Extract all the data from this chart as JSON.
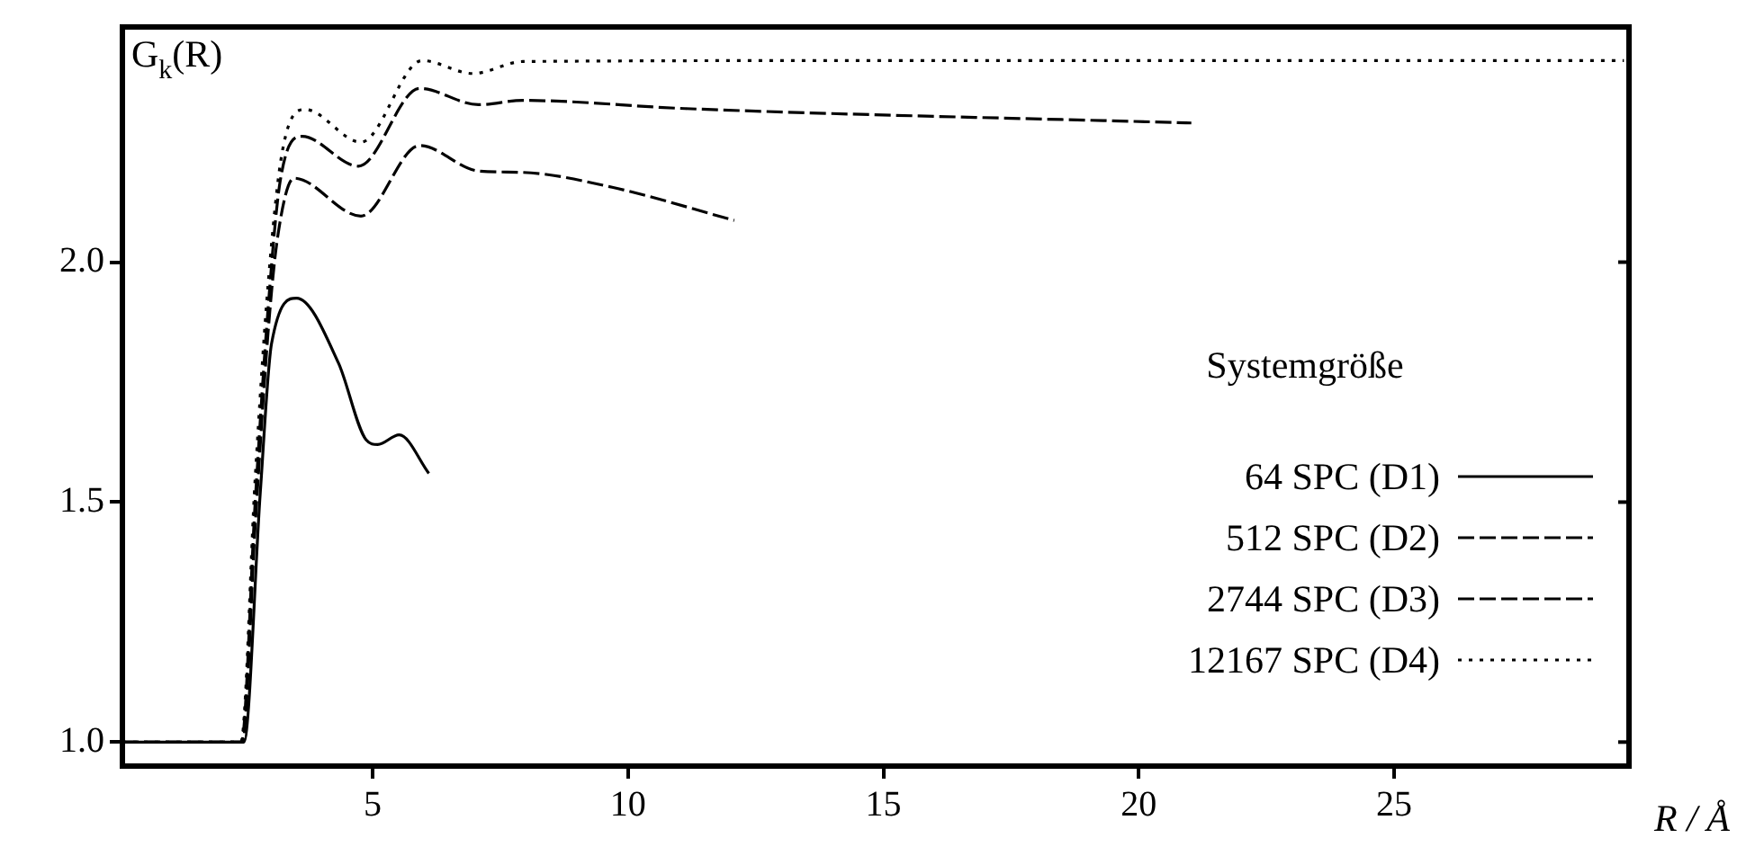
{
  "chart_data": {
    "type": "line",
    "ylabel": "G$_{k}$(R)",
    "xlabel": "R / Å",
    "legend_title": "Systemgröße",
    "legend": "right",
    "marker": "none",
    "xlim": [
      0.1,
      29.6
    ],
    "xticks": [
      5,
      10,
      15,
      20,
      25
    ],
    "ylim": [
      0.95,
      2.49
    ],
    "yticks": [
      {
        "value": 1,
        "label": "1.0"
      },
      {
        "value": 1.5,
        "label": "1.5"
      },
      {
        "value": 2,
        "label": "2.0"
      }
    ],
    "series": [
      {
        "name": "64 SPC (D1)",
        "color": "#000000",
        "line_style": "solid",
        "x": [
          0.1,
          2.48,
          2.8,
          3.02,
          3.51,
          4.33,
          4.87,
          5.1,
          5.52,
          6.1
        ],
        "values": [
          1.0,
          1.0,
          1.52,
          1.83,
          1.925,
          1.79,
          1.63,
          1.62,
          1.64,
          1.56
        ]
      },
      {
        "name": "512 SPC (D2)",
        "color": "#000000",
        "line_style": "dashed",
        "x": [
          0.1,
          2.45,
          2.7,
          2.95,
          3.13,
          3.46,
          4.77,
          5.92,
          7.07,
          7.94,
          9.69,
          12.08
        ],
        "values": [
          1.0,
          1.0,
          1.45,
          1.85,
          2.045,
          2.175,
          2.096,
          2.243,
          2.19,
          2.187,
          2.156,
          2.087
        ]
      },
      {
        "name": "2744 SPC (D3)",
        "color": "#000000",
        "line_style": "dashed",
        "x": [
          0.1,
          2.43,
          2.7,
          2.95,
          3.19,
          3.62,
          4.72,
          5.92,
          7.07,
          7.94,
          11.12,
          21.03
        ],
        "values": [
          1.0,
          1.0,
          1.5,
          1.9,
          2.169,
          2.262,
          2.2,
          2.362,
          2.328,
          2.337,
          2.32,
          2.29
        ]
      },
      {
        "name": "12167 SPC (D4)",
        "color": "#000000",
        "line_style": "dotted",
        "x": [
          0.1,
          2.42,
          2.7,
          2.95,
          3.23,
          3.68,
          4.77,
          5.97,
          6.96,
          7.94,
          15,
          29.5
        ],
        "values": [
          1.0,
          1.0,
          1.55,
          1.95,
          2.23,
          2.318,
          2.25,
          2.42,
          2.393,
          2.418,
          2.42,
          2.42
        ]
      }
    ]
  }
}
